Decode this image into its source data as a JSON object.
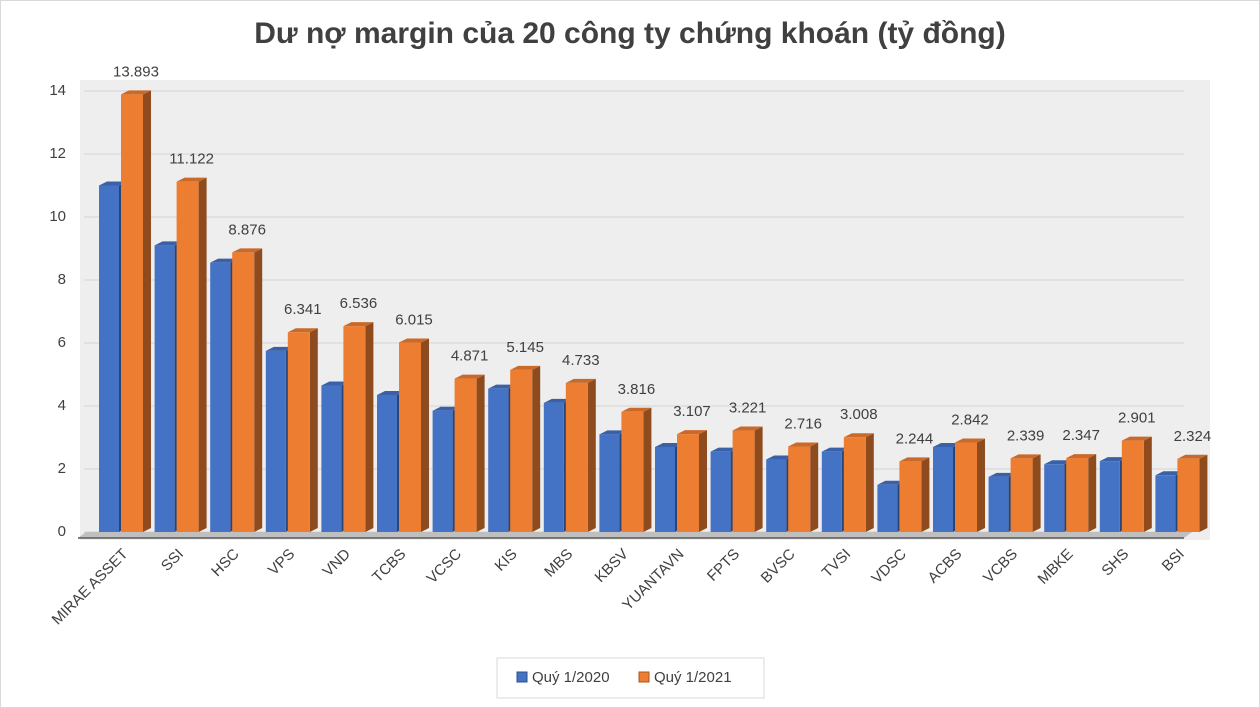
{
  "chart_data": {
    "type": "bar3d",
    "title": "Dư nợ margin của 20 công ty chứng khoán (tỷ đồng)",
    "categories": [
      "MIRAE ASSET",
      "SSI",
      "HSC",
      "VPS",
      "VND",
      "TCBS",
      "VCSC",
      "KIS",
      "MBS",
      "KBSV",
      "YUANTAVN",
      "FPTS",
      "BVSC",
      "TVSI",
      "VDSC",
      "ACBS",
      "VCBS",
      "MBKE",
      "SHS",
      "BSI"
    ],
    "series": [
      {
        "name": "Quý 1/2020",
        "color": "#4472c4",
        "values": [
          11.0,
          9.1,
          8.55,
          5.75,
          4.65,
          4.35,
          3.85,
          4.55,
          4.1,
          3.1,
          2.7,
          2.55,
          2.3,
          2.55,
          1.5,
          2.7,
          1.75,
          2.15,
          2.25,
          1.8
        ]
      },
      {
        "name": "Quý 1/2021",
        "color": "#ed7d31",
        "values": [
          13.893,
          11.122,
          8.876,
          6.341,
          6.536,
          6.015,
          4.871,
          5.145,
          4.733,
          3.816,
          3.107,
          3.221,
          2.716,
          3.008,
          2.244,
          2.842,
          2.339,
          2.347,
          2.901,
          2.324
        ]
      }
    ],
    "ylim": [
      0,
      14
    ],
    "yticks": [
      0,
      2,
      4,
      6,
      8,
      10,
      12,
      14
    ],
    "grid": true,
    "legend": "bottom"
  }
}
